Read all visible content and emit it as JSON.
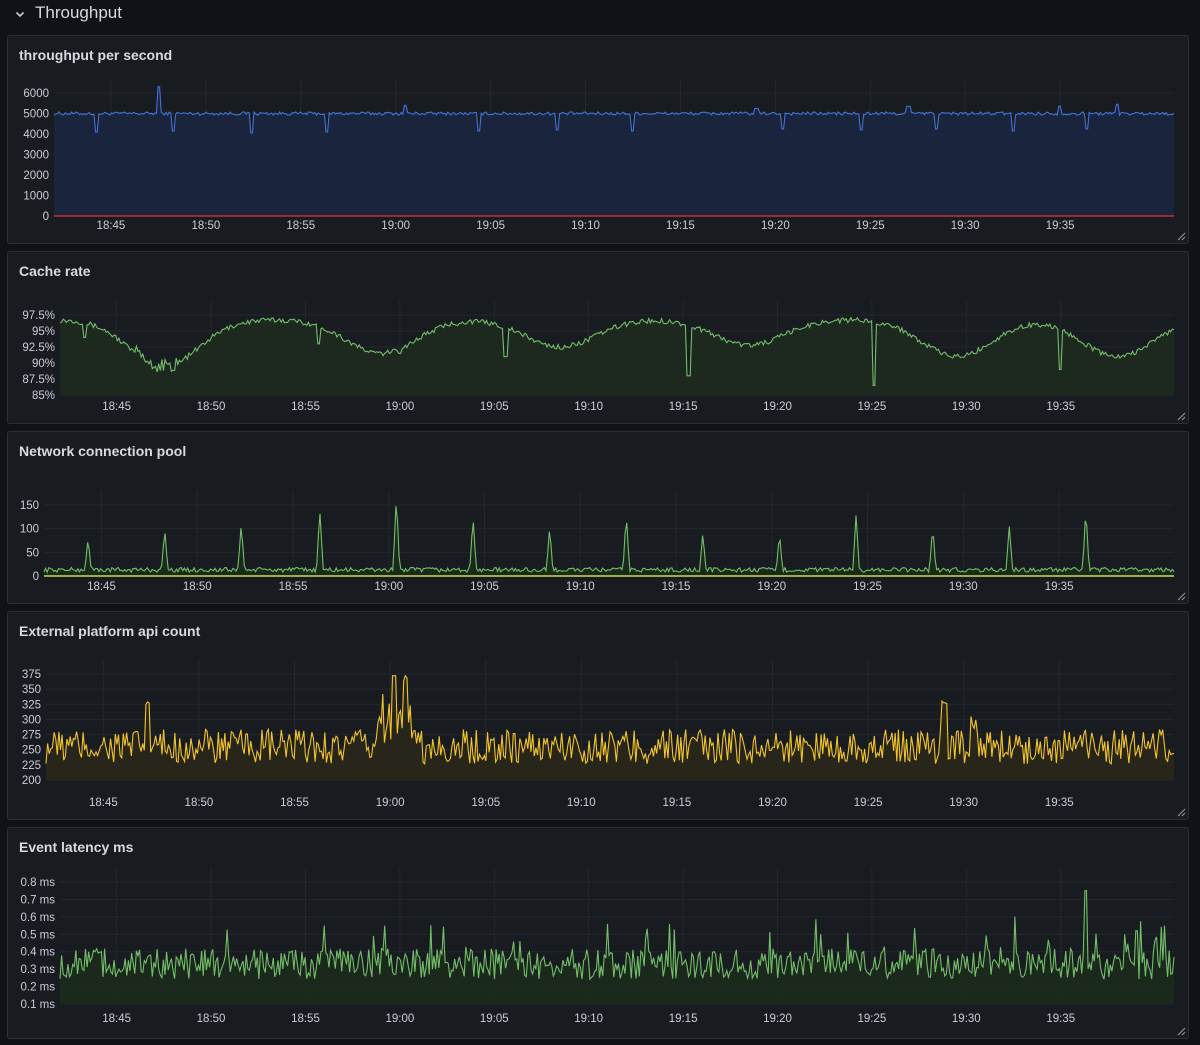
{
  "row": {
    "title": "Throughput"
  },
  "panels": [
    {
      "id": "throughput",
      "title": "throughput per second",
      "color": "#3f73d9",
      "fill": "#1b2740",
      "baseline_color": "#e0343b",
      "chart_data": {
        "type": "line",
        "y_ticks": [
          "6000",
          "5000",
          "4000",
          "3000",
          "2000",
          "1000",
          "0"
        ],
        "ylim": [
          0,
          6000
        ],
        "x_ticks": [
          "18:45",
          "18:50",
          "18:55",
          "19:00",
          "19:05",
          "19:10",
          "19:15",
          "19:20",
          "19:25",
          "19:30",
          "19:35"
        ],
        "xlim": [
          0,
          59
        ],
        "base": 5000,
        "noise": 80,
        "spikes_down": [
          [
            2.2,
            4100
          ],
          [
            6.3,
            4150
          ],
          [
            10.4,
            4050
          ],
          [
            14.4,
            4100
          ],
          [
            22.4,
            4150
          ],
          [
            26.5,
            4200
          ],
          [
            30.5,
            4150
          ],
          [
            38.4,
            4250
          ],
          [
            42.5,
            4200
          ],
          [
            46.5,
            4250
          ],
          [
            50.5,
            4150
          ],
          [
            54.4,
            4250
          ]
        ],
        "spikes_up": [
          [
            5.5,
            6300
          ],
          [
            18.5,
            5400
          ],
          [
            37.0,
            5250
          ],
          [
            45.0,
            5350
          ],
          [
            53.0,
            5350
          ],
          [
            56.0,
            5450
          ]
        ]
      }
    },
    {
      "id": "cache",
      "title": "Cache rate",
      "color": "#73bf69",
      "fill": "#1e2a1e",
      "chart_data": {
        "type": "line",
        "y_ticks": [
          "97.5%",
          "95%",
          "92.5%",
          "90%",
          "87.5%",
          "85%"
        ],
        "ylim": [
          85,
          97.5
        ],
        "x_ticks": [
          "18:45",
          "18:50",
          "18:55",
          "19:00",
          "19:05",
          "19:10",
          "19:15",
          "19:20",
          "19:25",
          "19:30",
          "19:35"
        ],
        "xlim": [
          0,
          59
        ],
        "dips": [
          [
            5.5,
            89.5
          ],
          [
            17.0,
            91.5
          ],
          [
            26.5,
            92.5
          ],
          [
            36.5,
            92.8
          ],
          [
            47.5,
            91.0
          ],
          [
            56.0,
            91.0
          ]
        ],
        "drops": [
          [
            1.3,
            94.0
          ],
          [
            13.7,
            93.0
          ],
          [
            18.0,
            91.5
          ],
          [
            23.6,
            91.0
          ],
          [
            33.3,
            88.0
          ],
          [
            43.1,
            86.5
          ],
          [
            53.0,
            89.0
          ]
        ]
      }
    },
    {
      "id": "network",
      "title": "Network connection pool",
      "color": "#73bf69",
      "fill": "#1c2a1c",
      "chart_data": {
        "type": "line",
        "y_ticks": [
          "150",
          "100",
          "50",
          "0"
        ],
        "ylim": [
          0,
          150
        ],
        "x_ticks": [
          "18:45",
          "18:50",
          "18:55",
          "19:00",
          "19:05",
          "19:10",
          "19:15",
          "19:20",
          "19:25",
          "19:30",
          "19:35"
        ],
        "xlim": [
          0,
          59
        ],
        "spikes": [
          [
            2.3,
            75
          ],
          [
            6.3,
            95
          ],
          [
            10.3,
            105
          ],
          [
            14.4,
            135
          ],
          [
            18.4,
            165
          ],
          [
            22.4,
            120
          ],
          [
            26.4,
            98
          ],
          [
            30.4,
            125
          ],
          [
            34.4,
            85
          ],
          [
            38.4,
            85
          ],
          [
            42.4,
            125
          ],
          [
            46.4,
            100
          ],
          [
            50.4,
            100
          ],
          [
            54.4,
            138
          ]
        ]
      }
    },
    {
      "id": "external",
      "title": "External platform api count",
      "color": "#f2c42d",
      "fill": "#2a271a",
      "chart_data": {
        "type": "line",
        "y_ticks": [
          "375",
          "350",
          "325",
          "300",
          "275",
          "250",
          "225",
          "200"
        ],
        "ylim": [
          200,
          375
        ],
        "x_ticks": [
          "18:45",
          "18:50",
          "18:55",
          "19:00",
          "19:05",
          "19:10",
          "19:15",
          "19:20",
          "19:25",
          "19:30",
          "19:35"
        ],
        "xlim": [
          0,
          59
        ],
        "base": 255,
        "noise": 22,
        "bumps": [
          [
            5.3,
            335
          ],
          [
            17.5,
            305
          ],
          [
            18.2,
            370
          ],
          [
            18.8,
            345
          ],
          [
            47.0,
            335
          ],
          [
            48.5,
            305
          ]
        ]
      }
    },
    {
      "id": "latency",
      "title": "Event latency ms",
      "color": "#73bf69",
      "fill": "#1c2a1c",
      "chart_data": {
        "type": "line",
        "y_ticks": [
          "0.8 ms",
          "0.7 ms",
          "0.6 ms",
          "0.5 ms",
          "0.4 ms",
          "0.3 ms",
          "0.2 ms",
          "0.1 ms"
        ],
        "ylim": [
          0.1,
          0.8
        ],
        "x_ticks": [
          "18:45",
          "18:50",
          "18:55",
          "19:00",
          "19:05",
          "19:10",
          "19:15",
          "19:20",
          "19:25",
          "19:30",
          "19:35"
        ],
        "xlim": [
          0,
          59
        ],
        "base": 0.33,
        "noise": 0.07,
        "peaks": [
          [
            54.3,
            0.75
          ],
          [
            57.0,
            0.52
          ],
          [
            58.5,
            0.55
          ],
          [
            29.0,
            0.56
          ],
          [
            14.0,
            0.55
          ]
        ]
      }
    }
  ]
}
